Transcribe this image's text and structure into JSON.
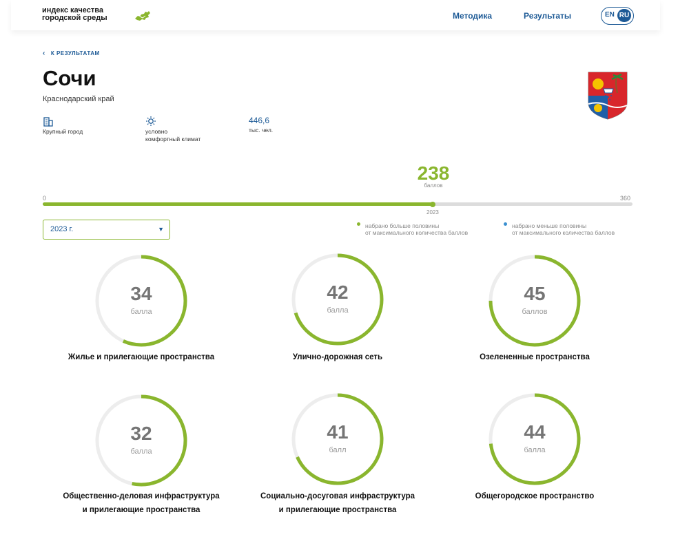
{
  "header": {
    "logo_line1": "индекс качества",
    "logo_line2": "городской среды",
    "nav": [
      "Методика",
      "Результаты"
    ],
    "lang_en": "EN",
    "lang_ru": "RU",
    "accent": "#1d5a96"
  },
  "back_label": "К РЕЗУЛЬТАТАМ",
  "city": {
    "name": "Сочи",
    "region": "Краснодарский край",
    "stats": [
      {
        "icon": "building-icon",
        "value": "",
        "label_lines": [
          "Крупный город"
        ]
      },
      {
        "icon": "sun-icon",
        "value": "",
        "label_lines": [
          "условно",
          "комфортный климат"
        ]
      },
      {
        "icon": "",
        "value": "446,6",
        "label_lines": [
          "тыс. чел."
        ]
      }
    ]
  },
  "total": {
    "score": "238",
    "unit": "баллов",
    "min": "0",
    "max": "360",
    "score_value": 238,
    "max_value": 360,
    "year": "2023",
    "color": "#8ab62e"
  },
  "year_select": {
    "value": "2023 г."
  },
  "legend": [
    {
      "color": "#8ab62e",
      "line1": "набрано больше половины",
      "line2": "от максимального количества баллов"
    },
    {
      "color": "#3a8fd0",
      "line1": "набрано меньше половины",
      "line2": "от максимального количества баллов"
    }
  ],
  "categories": [
    {
      "score": "34",
      "unit": "балла",
      "max_value": 60,
      "value": 34,
      "label_lines": [
        "Жилье и прилегающие пространства"
      ]
    },
    {
      "score": "42",
      "unit": "балла",
      "max_value": 60,
      "value": 42,
      "label_lines": [
        "Улично-дорожная сеть"
      ]
    },
    {
      "score": "45",
      "unit": "баллов",
      "max_value": 60,
      "value": 45,
      "label_lines": [
        "Озелененные пространства"
      ]
    },
    {
      "score": "32",
      "unit": "балла",
      "max_value": 60,
      "value": 32,
      "label_lines": [
        "Общественно-деловая инфраструктура",
        "и прилегающие пространства"
      ]
    },
    {
      "score": "41",
      "unit": "балл",
      "max_value": 60,
      "value": 41,
      "label_lines": [
        "Социально-досуговая инфраструктура",
        "и прилегающие пространства"
      ]
    },
    {
      "score": "44",
      "unit": "балла",
      "max_value": 60,
      "value": 44,
      "label_lines": [
        "Общегородское пространство"
      ]
    }
  ]
}
